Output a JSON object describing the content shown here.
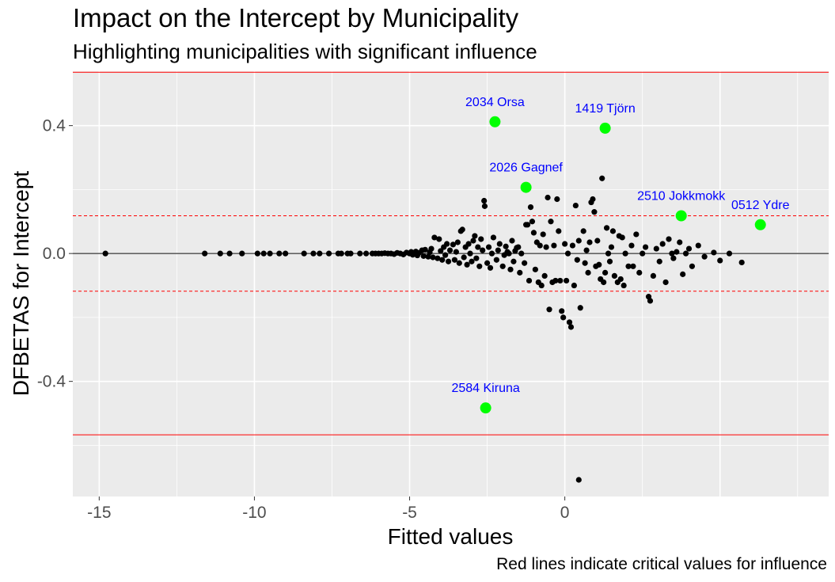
{
  "chart_data": {
    "type": "scatter",
    "title": "Impact on the Intercept by Municipality",
    "subtitle": "Highlighting municipalities with significant influence",
    "caption": "Red lines indicate critical values for influence",
    "xlabel": "Fitted values",
    "ylabel": "DFBETAS for Intercept",
    "xlim": [
      -15.85,
      8.5
    ],
    "ylim": [
      -0.76,
      0.57
    ],
    "x_ticks": [
      -15,
      -10,
      -5,
      0
    ],
    "y_ticks": [
      -0.4,
      0.0,
      0.4
    ],
    "x_tick_labels": [
      "-15",
      "-10",
      "-5",
      "0"
    ],
    "y_tick_labels": [
      "-0.4",
      "0.0",
      "0.4"
    ],
    "grid": true,
    "colors": {
      "panel": "#ebebeb",
      "grid": "#ffffff",
      "points": "#000000",
      "highlight": "#00ff00",
      "highlight_label": "#0000ff",
      "critical_line": "#ff0000",
      "zero_line": "#000000"
    },
    "reference_lines": [
      {
        "y": 0.567,
        "style": "solid",
        "color": "#ff0000"
      },
      {
        "y": -0.567,
        "style": "solid",
        "color": "#ff0000"
      },
      {
        "y": 0.118,
        "style": "dashed",
        "color": "#ff0000"
      },
      {
        "y": -0.118,
        "style": "dashed",
        "color": "#ff0000"
      },
      {
        "y": 0,
        "style": "solid",
        "color": "#000000"
      }
    ],
    "highlighted": [
      {
        "label": "2034 Orsa",
        "x": -2.25,
        "y": 0.412
      },
      {
        "label": "1419 Tjörn",
        "x": 1.3,
        "y": 0.392
      },
      {
        "label": "2026 Gagnef",
        "x": -1.25,
        "y": 0.207
      },
      {
        "label": "2510 Jokkmokk",
        "x": 3.75,
        "y": 0.118
      },
      {
        "label": "0512 Ydre",
        "x": 6.3,
        "y": 0.09
      },
      {
        "label": "2584 Kiruna",
        "x": -2.55,
        "y": -0.483
      }
    ],
    "points": [
      [
        -14.8,
        0.0
      ],
      [
        -11.6,
        0.0
      ],
      [
        -11.1,
        0.0
      ],
      [
        -10.8,
        0.0
      ],
      [
        -10.4,
        0.0
      ],
      [
        -9.9,
        0.0
      ],
      [
        -9.7,
        0.0
      ],
      [
        -9.5,
        0.0
      ],
      [
        -9.2,
        0.0
      ],
      [
        -9.0,
        0.0
      ],
      [
        -8.4,
        0.0
      ],
      [
        -8.1,
        0.0
      ],
      [
        -7.9,
        0.0
      ],
      [
        -7.6,
        0.0
      ],
      [
        -7.3,
        0.0
      ],
      [
        -7.2,
        0.0
      ],
      [
        -7.0,
        0.0
      ],
      [
        -6.9,
        0.0
      ],
      [
        -6.6,
        0.0
      ],
      [
        -6.4,
        0.0
      ],
      [
        -6.2,
        0.0
      ],
      [
        -6.1,
        0.0
      ],
      [
        -6.0,
        0.0
      ],
      [
        -5.9,
        0.0
      ],
      [
        -5.8,
        0.001
      ],
      [
        -5.7,
        0.0
      ],
      [
        -5.6,
        0.0
      ],
      [
        -5.5,
        -0.002
      ],
      [
        -5.4,
        0.002
      ],
      [
        -5.3,
        0.0
      ],
      [
        -5.2,
        -0.003
      ],
      [
        -5.1,
        0.003
      ],
      [
        -5.0,
        0.0
      ],
      [
        -4.95,
        0.005
      ],
      [
        -4.9,
        -0.004
      ],
      [
        -4.8,
        0.006
      ],
      [
        -4.75,
        -0.006
      ],
      [
        -4.7,
        0.002
      ],
      [
        -4.6,
        0.01
      ],
      [
        -4.55,
        -0.008
      ],
      [
        -4.5,
        0.012
      ],
      [
        -4.4,
        -0.01
      ],
      [
        -4.35,
        0.004
      ],
      [
        -4.3,
        0.015
      ],
      [
        -4.25,
        -0.012
      ],
      [
        -4.2,
        0.05
      ],
      [
        -4.1,
        -0.015
      ],
      [
        -4.05,
        0.045
      ],
      [
        -4.0,
        0.008
      ],
      [
        -3.95,
        -0.02
      ],
      [
        -3.9,
        0.02
      ],
      [
        -3.85,
        -0.005
      ],
      [
        -3.8,
        0.03
      ],
      [
        -3.75,
        -0.025
      ],
      [
        -3.7,
        0.01
      ],
      [
        -3.6,
        0.028
      ],
      [
        -3.55,
        -0.02
      ],
      [
        -3.5,
        0.005
      ],
      [
        -3.45,
        0.035
      ],
      [
        -3.4,
        -0.03
      ],
      [
        -3.35,
        0.07
      ],
      [
        -3.3,
        0.075
      ],
      [
        -3.25,
        -0.012
      ],
      [
        -3.2,
        0.02
      ],
      [
        -3.15,
        -0.035
      ],
      [
        -3.1,
        0.03
      ],
      [
        -3.05,
        0.0
      ],
      [
        -3.0,
        -0.025
      ],
      [
        -2.95,
        0.04
      ],
      [
        -2.9,
        0.055
      ],
      [
        -2.85,
        -0.015
      ],
      [
        -2.8,
        0.02
      ],
      [
        -2.75,
        -0.04
      ],
      [
        -2.7,
        0.045
      ],
      [
        -2.65,
        0.01
      ],
      [
        -2.6,
        0.165
      ],
      [
        -2.58,
        0.148
      ],
      [
        -2.5,
        -0.03
      ],
      [
        -2.45,
        0.02
      ],
      [
        -2.4,
        -0.045
      ],
      [
        -2.35,
        0.0
      ],
      [
        -2.3,
        0.05
      ],
      [
        -2.2,
        -0.02
      ],
      [
        -2.15,
        0.01
      ],
      [
        -2.1,
        0.03
      ],
      [
        -2.0,
        -0.04
      ],
      [
        -1.95,
        -0.005
      ],
      [
        -1.9,
        0.022
      ],
      [
        -1.85,
        0.005
      ],
      [
        -1.8,
        0.0
      ],
      [
        -1.75,
        -0.05
      ],
      [
        -1.7,
        0.04
      ],
      [
        -1.65,
        -0.025
      ],
      [
        -1.6,
        0.008
      ],
      [
        -1.55,
        0.018
      ],
      [
        -1.5,
        0.02
      ],
      [
        -1.45,
        -0.06
      ],
      [
        -1.4,
        0.0
      ],
      [
        -1.3,
        -0.03
      ],
      [
        -1.25,
        0.09
      ],
      [
        -1.2,
        0.09
      ],
      [
        -1.15,
        -0.085
      ],
      [
        -1.1,
        0.145
      ],
      [
        -1.05,
        0.1
      ],
      [
        -1.0,
        0.065
      ],
      [
        -0.95,
        -0.05
      ],
      [
        -0.9,
        0.035
      ],
      [
        -0.85,
        -0.09
      ],
      [
        -0.8,
        0.025
      ],
      [
        -0.75,
        -0.1
      ],
      [
        -0.7,
        0.06
      ],
      [
        -0.65,
        -0.07
      ],
      [
        -0.6,
        0.02
      ],
      [
        -0.55,
        0.175
      ],
      [
        -0.5,
        -0.175
      ],
      [
        -0.45,
        0.1
      ],
      [
        -0.4,
        -0.09
      ],
      [
        -0.35,
        0.025
      ],
      [
        -0.3,
        -0.085
      ],
      [
        -0.25,
        0.17
      ],
      [
        -0.2,
        0.07
      ],
      [
        -0.15,
        -0.085
      ],
      [
        -0.1,
        -0.18
      ],
      [
        -0.05,
        -0.2
      ],
      [
        0.0,
        0.03
      ],
      [
        0.05,
        -0.085
      ],
      [
        0.1,
        0.0
      ],
      [
        0.15,
        -0.215
      ],
      [
        0.2,
        -0.23
      ],
      [
        0.25,
        0.025
      ],
      [
        0.3,
        -0.1
      ],
      [
        0.35,
        0.15
      ],
      [
        0.4,
        -0.02
      ],
      [
        0.45,
        0.04
      ],
      [
        0.5,
        -0.17
      ],
      [
        0.6,
        0.07
      ],
      [
        0.65,
        -0.03
      ],
      [
        0.7,
        0.01
      ],
      [
        0.75,
        -0.06
      ],
      [
        0.8,
        0.035
      ],
      [
        0.85,
        0.16
      ],
      [
        0.9,
        0.17
      ],
      [
        0.95,
        0.13
      ],
      [
        1.0,
        -0.04
      ],
      [
        1.05,
        0.04
      ],
      [
        1.1,
        -0.035
      ],
      [
        1.15,
        -0.08
      ],
      [
        1.2,
        0.235
      ],
      [
        1.25,
        -0.09
      ],
      [
        1.3,
        -0.06
      ],
      [
        1.35,
        0.08
      ],
      [
        1.4,
        0.0
      ],
      [
        1.45,
        -0.025
      ],
      [
        1.5,
        0.02
      ],
      [
        1.55,
        0.07
      ],
      [
        1.6,
        -0.07
      ],
      [
        1.7,
        -0.09
      ],
      [
        1.75,
        0.055
      ],
      [
        1.8,
        -0.08
      ],
      [
        1.85,
        0.05
      ],
      [
        1.9,
        -0.1
      ],
      [
        1.95,
        0.0
      ],
      [
        2.05,
        -0.04
      ],
      [
        2.15,
        0.025
      ],
      [
        2.2,
        -0.04
      ],
      [
        2.3,
        0.06
      ],
      [
        2.4,
        -0.06
      ],
      [
        2.5,
        0.0
      ],
      [
        2.6,
        0.02
      ],
      [
        2.7,
        -0.135
      ],
      [
        2.75,
        -0.148
      ],
      [
        2.85,
        -0.07
      ],
      [
        2.95,
        0.015
      ],
      [
        3.05,
        -0.025
      ],
      [
        3.15,
        0.03
      ],
      [
        3.25,
        -0.09
      ],
      [
        3.35,
        0.045
      ],
      [
        3.45,
        0.0
      ],
      [
        3.5,
        -0.015
      ],
      [
        3.6,
        0.005
      ],
      [
        3.7,
        0.035
      ],
      [
        3.8,
        -0.065
      ],
      [
        3.9,
        0.0
      ],
      [
        4.0,
        0.015
      ],
      [
        4.1,
        -0.04
      ],
      [
        4.3,
        0.025
      ],
      [
        4.5,
        -0.01
      ],
      [
        4.8,
        0.003
      ],
      [
        5.0,
        -0.022
      ],
      [
        5.3,
        0.0
      ],
      [
        5.7,
        -0.028
      ],
      [
        0.45,
        -0.708
      ]
    ]
  }
}
